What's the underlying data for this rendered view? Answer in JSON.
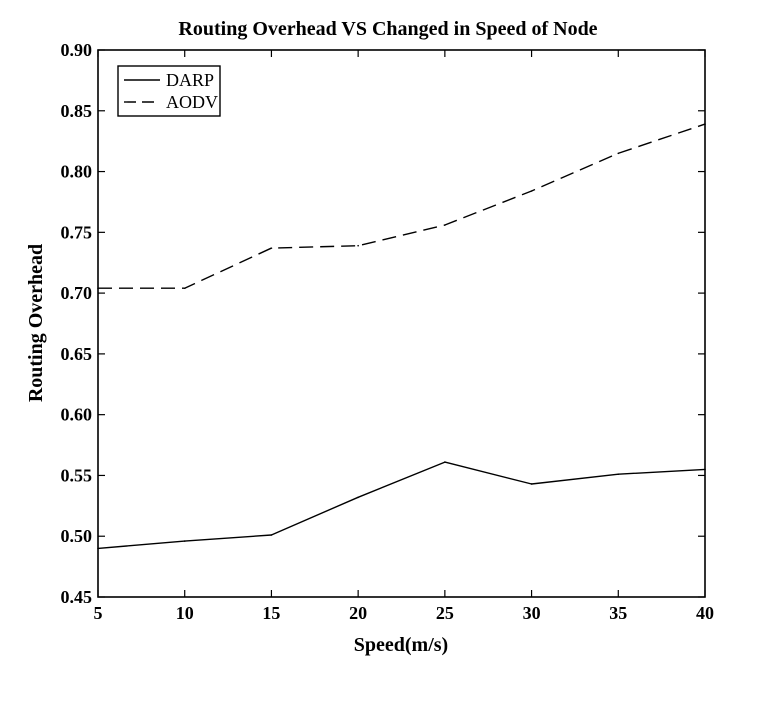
{
  "chart_data": {
    "type": "line",
    "title": "Routing Overhead VS Changed in Speed of Node",
    "xlabel": "Speed(m/s)",
    "ylabel": "Routing Overhead",
    "x": [
      5,
      10,
      15,
      20,
      25,
      30,
      35,
      40
    ],
    "xlim": [
      5,
      40
    ],
    "ylim": [
      0.45,
      0.9
    ],
    "xticks": [
      "5",
      "10",
      "15",
      "20",
      "25",
      "30",
      "35",
      "40"
    ],
    "yticks": [
      "0.45",
      "0.50",
      "0.55",
      "0.60",
      "0.65",
      "0.70",
      "0.75",
      "0.80",
      "0.85",
      "0.90"
    ],
    "grid": false,
    "legend_position": "top-left",
    "series": [
      {
        "name": "DARP",
        "line_style": "solid",
        "color": "#000000",
        "values": [
          0.49,
          0.496,
          0.501,
          0.532,
          0.561,
          0.543,
          0.551,
          0.555
        ]
      },
      {
        "name": "AODV",
        "line_style": "dashed",
        "color": "#000000",
        "values": [
          0.704,
          0.704,
          0.737,
          0.739,
          0.756,
          0.784,
          0.815,
          0.839
        ]
      }
    ]
  }
}
